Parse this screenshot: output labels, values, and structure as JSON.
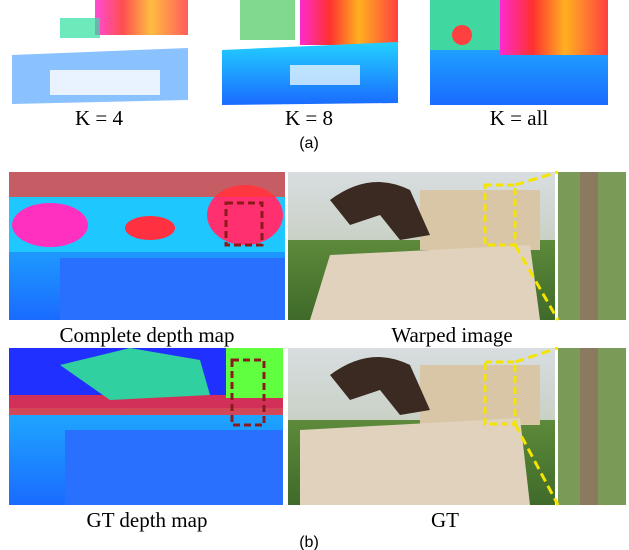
{
  "figure": {
    "part_a": {
      "labels": [
        "K = 4",
        "K = 8",
        "K = all"
      ],
      "caption": "(a)"
    },
    "part_b": {
      "row_1": {
        "labels": [
          "Complete depth map",
          "Warped image"
        ]
      },
      "row_2": {
        "labels": [
          "GT depth map",
          "GT"
        ]
      },
      "caption": "(b)"
    }
  }
}
